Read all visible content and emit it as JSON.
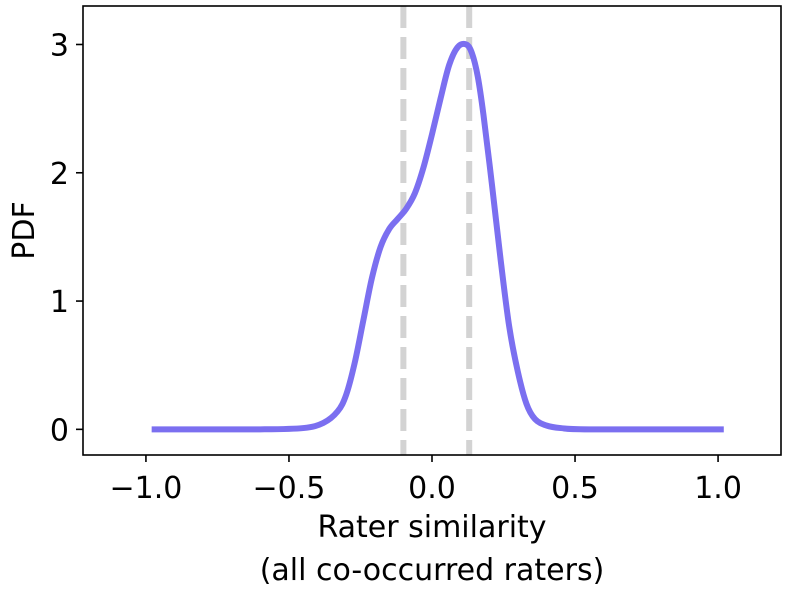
{
  "chart_data": {
    "type": "line",
    "title": "",
    "xlabel_line1": "Rater similarity",
    "xlabel_line2": "(all co-occurred raters)",
    "ylabel": "PDF",
    "xlim": [
      -1.22,
      1.22
    ],
    "ylim": [
      -0.2,
      3.3
    ],
    "xticks": [
      -1.0,
      -0.5,
      0.0,
      0.5,
      1.0
    ],
    "xtick_labels": [
      "−1.0",
      "−0.5",
      "0.0",
      "0.5",
      "1.0"
    ],
    "yticks": [
      0,
      1,
      2,
      3
    ],
    "ytick_labels": [
      "0",
      "1",
      "2",
      "3"
    ],
    "grid": false,
    "line_color": "#7b6ff0",
    "vline_color": "#d3d3d3",
    "vlines": [
      -0.1,
      0.13
    ],
    "series": [
      {
        "x": [
          -0.98,
          -0.6,
          -0.45,
          -0.38,
          -0.33,
          -0.3,
          -0.27,
          -0.24,
          -0.21,
          -0.18,
          -0.15,
          -0.12,
          -0.09,
          -0.06,
          -0.03,
          0.0,
          0.03,
          0.06,
          0.09,
          0.12,
          0.14,
          0.16,
          0.18,
          0.21,
          0.24,
          0.27,
          0.3,
          0.33,
          0.36,
          0.4,
          0.45,
          0.55,
          1.02
        ],
        "y": [
          0.0,
          0.0,
          0.01,
          0.05,
          0.14,
          0.27,
          0.52,
          0.85,
          1.18,
          1.42,
          1.56,
          1.64,
          1.72,
          1.84,
          2.04,
          2.3,
          2.58,
          2.84,
          2.98,
          3.0,
          2.93,
          2.75,
          2.45,
          1.9,
          1.32,
          0.8,
          0.45,
          0.2,
          0.08,
          0.03,
          0.01,
          0.0,
          0.0
        ]
      }
    ]
  }
}
